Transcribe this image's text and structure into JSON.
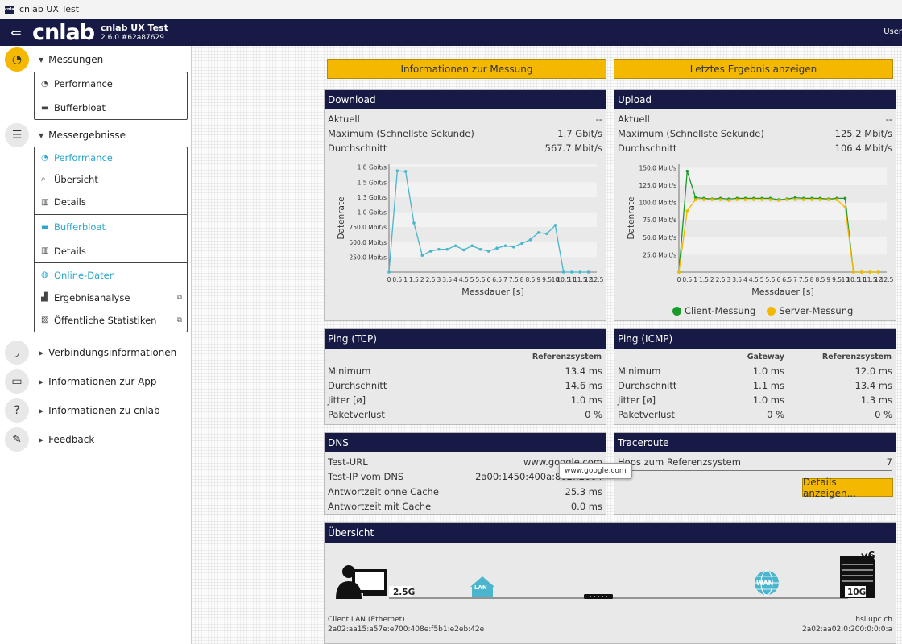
{
  "window": {
    "title": "cnlab UX Test",
    "icon_text": "cnlab"
  },
  "header": {
    "logo": "cnlab",
    "name": "cnlab UX Test",
    "version": "2.6.0 #62a87629",
    "user": "User"
  },
  "sidebar": {
    "messungen": {
      "label": "Messungen",
      "items": [
        {
          "label": "Performance"
        },
        {
          "label": "Bufferbloat"
        }
      ]
    },
    "messergebnisse": {
      "label": "Messergebnisse",
      "performance": "Performance",
      "uebersicht": "Übersicht",
      "details1": "Details",
      "bufferbloat": "Bufferbloat",
      "details2": "Details",
      "online": "Online-Daten",
      "ergebnisanalyse": "Ergebnisanalyse",
      "statistiken": "Öffentliche Statistiken"
    },
    "verbindung": "Verbindungsinformationen",
    "app": "Informationen zur App",
    "cnlab": "Informationen zu cnlab",
    "feedback": "Feedback"
  },
  "buttons": {
    "info": "Informationen zur Messung",
    "last": "Letztes Ergebnis anzeigen",
    "details": "Details anzeigen..."
  },
  "download": {
    "title": "Download",
    "rows": [
      {
        "label": "Aktuell",
        "value": "--"
      },
      {
        "label": "Maximum (Schnellste Sekunde)",
        "value": "1.7 Gbit/s"
      },
      {
        "label": "Durchschnitt",
        "value": "567.7 Mbit/s"
      }
    ]
  },
  "upload": {
    "title": "Upload",
    "rows": [
      {
        "label": "Aktuell",
        "value": "--"
      },
      {
        "label": "Maximum (Schnellste Sekunde)",
        "value": "125.2 Mbit/s"
      },
      {
        "label": "Durchschnitt",
        "value": "106.4 Mbit/s"
      }
    ],
    "legend": {
      "client": "Client-Messung",
      "server": "Server-Messung"
    }
  },
  "ping_tcp": {
    "title": "Ping (TCP)",
    "col": "Referenzsystem",
    "rows": [
      {
        "label": "Minimum",
        "value": "13.4 ms"
      },
      {
        "label": "Durchschnitt",
        "value": "14.6 ms"
      },
      {
        "label": "Jitter [ø]",
        "value": "1.0 ms"
      },
      {
        "label": "Paketverlust",
        "value": "0 %"
      }
    ]
  },
  "ping_icmp": {
    "title": "Ping (ICMP)",
    "col1": "Gateway",
    "col2": "Referenzsystem",
    "rows": [
      {
        "label": "Minimum",
        "gw": "1.0 ms",
        "ref": "12.0 ms"
      },
      {
        "label": "Durchschnitt",
        "gw": "1.1 ms",
        "ref": "13.4 ms"
      },
      {
        "label": "Jitter [ø]",
        "gw": "1.0 ms",
        "ref": "1.3 ms"
      },
      {
        "label": "Paketverlust",
        "gw": "0 %",
        "ref": "0 %"
      }
    ]
  },
  "dns": {
    "title": "DNS",
    "rows": [
      {
        "label": "Test-URL",
        "value": "www.google.com"
      },
      {
        "label": "Test-IP vom DNS",
        "value": "2a00:1450:400a:802::2004"
      },
      {
        "label": "Antwortzeit ohne Cache",
        "value": "25.3 ms"
      },
      {
        "label": "Antwortzeit mit Cache",
        "value": "0.0 ms"
      }
    ],
    "tooltip": "www.google.com"
  },
  "traceroute": {
    "title": "Traceroute",
    "label": "Hops zum Referenzsystem",
    "value": "7"
  },
  "overview": {
    "title": "Übersicht",
    "client_speed": "2.5G",
    "lan": "LAN",
    "wan": "WAN",
    "server_speed": "10G",
    "ipver": "v6",
    "client_label": "Client LAN (Ethernet)",
    "client_ip": "2a02:aa15:a57e:e700:408e:f5b1:e2eb:42e",
    "server_label": "hsi.upc.ch",
    "server_ip": "2a02:aa02:0:200:0:0:0:a"
  },
  "chart_data": [
    {
      "type": "line",
      "title": "Download",
      "xlabel": "Messdauer [s]",
      "ylabel": "Datenrate",
      "xlim": [
        0,
        12.5
      ],
      "x_ticks": [
        "0",
        "0.5",
        "1",
        "1.5",
        "2",
        "2.5",
        "3",
        "3.5",
        "4",
        "4.5",
        "5",
        "5.5",
        "6",
        "6.5",
        "7",
        "7.5",
        "8",
        "8.5",
        "9",
        "9.5",
        "10",
        "10.5",
        "11",
        "11.5",
        "12",
        "12.5"
      ],
      "y_ticks": [
        "250.0 Mbit/s",
        "500.0 Mbit/s",
        "750.0 Mbit/s",
        "1.0 Gbit/s",
        "1.3 Gbit/s",
        "1.5 Gbit/s",
        "1.8 Gbit/s"
      ],
      "y_tick_values": [
        250,
        500,
        750,
        1000,
        1250,
        1500,
        1750
      ],
      "ylim": [
        0,
        1800
      ],
      "unit": "Mbit/s",
      "color": "#4ab5cc",
      "series": [
        {
          "x": [
            0,
            0.5,
            1,
            1.5,
            2,
            2.5,
            3,
            3.5,
            4,
            4.5,
            5,
            5.5,
            6,
            6.5,
            7,
            7.5,
            8,
            8.5,
            9,
            9.5,
            10,
            10.5,
            11,
            11.5,
            12
          ],
          "y": [
            0,
            1690,
            1680,
            820,
            280,
            350,
            380,
            380,
            440,
            370,
            440,
            380,
            350,
            400,
            440,
            420,
            480,
            540,
            660,
            640,
            780,
            0,
            0,
            0,
            0
          ]
        }
      ]
    },
    {
      "type": "line",
      "title": "Upload",
      "xlabel": "Messdauer [s]",
      "ylabel": "Datenrate",
      "xlim": [
        0,
        12.5
      ],
      "x_ticks": [
        "0",
        "0.5",
        "1",
        "1.5",
        "2",
        "2.5",
        "3",
        "3.5",
        "4",
        "4.5",
        "5",
        "5.5",
        "6",
        "6.5",
        "7",
        "7.5",
        "8",
        "8.5",
        "9",
        "9.5",
        "10",
        "10.5",
        "11",
        "11.5",
        "12",
        "12.5"
      ],
      "y_ticks": [
        "25.0 Mbit/s",
        "50.0 Mbit/s",
        "75.0 Mbit/s",
        "100.0 Mbit/s",
        "125.0 Mbit/s",
        "150.0 Mbit/s"
      ],
      "y_tick_values": [
        25,
        50,
        75,
        100,
        125,
        150
      ],
      "ylim": [
        0,
        155
      ],
      "unit": "Mbit/s",
      "series": [
        {
          "name": "Client-Messung",
          "color": "#1a9a2a",
          "x": [
            0,
            0.5,
            1,
            1.5,
            2,
            2.5,
            3,
            3.5,
            4,
            4.5,
            5,
            5.5,
            6,
            6.5,
            7,
            7.5,
            8,
            8.5,
            9,
            9.5,
            10,
            10.5,
            11,
            11.5,
            12
          ],
          "y": [
            0,
            145,
            107,
            106,
            105,
            106,
            105,
            106,
            106,
            106,
            106,
            106,
            104,
            105,
            107,
            106,
            106,
            106,
            105,
            106,
            106,
            0,
            0,
            0,
            0
          ]
        },
        {
          "name": "Server-Messung",
          "color": "#f5b800",
          "x": [
            0,
            0.5,
            1,
            1.5,
            2,
            2.5,
            3,
            3.5,
            4,
            4.5,
            5,
            5.5,
            6,
            6.5,
            7,
            7.5,
            8,
            8.5,
            9,
            9.5,
            10,
            10.5,
            11,
            11.5,
            12
          ],
          "y": [
            0,
            88,
            104,
            104,
            104,
            104,
            103,
            104,
            104,
            104,
            104,
            104,
            103,
            104,
            104,
            104,
            104,
            104,
            104,
            104,
            93,
            0,
            0,
            0,
            0
          ]
        }
      ]
    }
  ]
}
